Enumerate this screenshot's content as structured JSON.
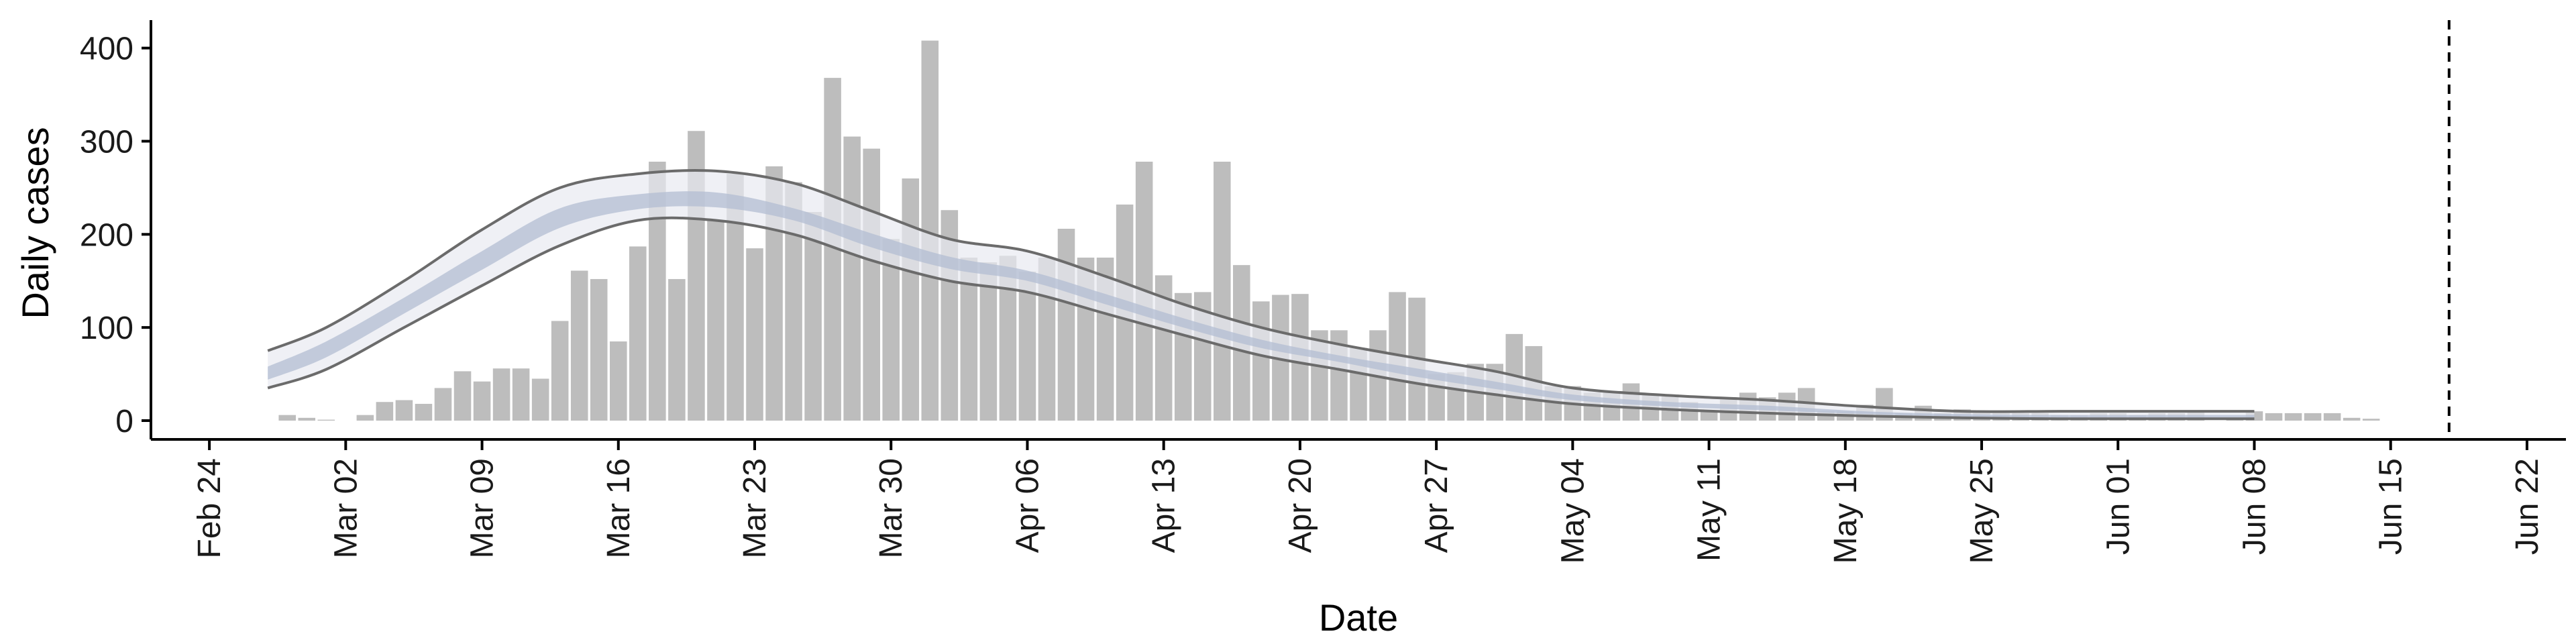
{
  "chart_data": {
    "type": "bar",
    "xlabel": "Date",
    "ylabel": "Daily cases",
    "ylim": [
      0,
      430
    ],
    "xlim": [
      "2020-02-21",
      "2020-06-24"
    ],
    "grid": false,
    "legend": "none",
    "x_ticks": [
      "Feb 24",
      "Mar 02",
      "Mar 09",
      "Mar 16",
      "Mar 23",
      "Mar 30",
      "Apr 06",
      "Apr 13",
      "Apr 20",
      "Apr 27",
      "May 04",
      "May 11",
      "May 18",
      "May 25",
      "Jun 01",
      "Jun 08",
      "Jun 15",
      "Jun 22"
    ],
    "x_tick_dates": [
      "2020-02-24",
      "2020-03-02",
      "2020-03-09",
      "2020-03-16",
      "2020-03-23",
      "2020-03-30",
      "2020-04-06",
      "2020-04-13",
      "2020-04-20",
      "2020-04-27",
      "2020-05-04",
      "2020-05-11",
      "2020-05-18",
      "2020-05-25",
      "2020-06-01",
      "2020-06-08",
      "2020-06-15",
      "2020-06-22"
    ],
    "y_ticks": [
      0,
      100,
      200,
      300,
      400
    ],
    "bars_start_date": "2020-02-28",
    "daily_cases": [
      6,
      3,
      1,
      0,
      6,
      20,
      22,
      18,
      35,
      53,
      42,
      56,
      56,
      45,
      107,
      161,
      152,
      85,
      187,
      278,
      152,
      311,
      215,
      265,
      185,
      273,
      256,
      224,
      368,
      305,
      292,
      195,
      260,
      408,
      226,
      175,
      170,
      177,
      160,
      175,
      206,
      175,
      175,
      232,
      278,
      156,
      137,
      138,
      278,
      167,
      128,
      135,
      136,
      97,
      97,
      78,
      97,
      138,
      132,
      50,
      52,
      61,
      61,
      93,
      80,
      37,
      37,
      30,
      30,
      40,
      28,
      28,
      20,
      10,
      25,
      30,
      25,
      30,
      35,
      10,
      10,
      17,
      35,
      8,
      16,
      8,
      12,
      8,
      8,
      8,
      8,
      6,
      6,
      8,
      8,
      6,
      8,
      8,
      10,
      0,
      3,
      10,
      8,
      8,
      8,
      8,
      3,
      2
    ],
    "band_dates": [
      "2020-02-27",
      "2020-03-01",
      "2020-03-05",
      "2020-03-09",
      "2020-03-13",
      "2020-03-17",
      "2020-03-21",
      "2020-03-25",
      "2020-03-29",
      "2020-04-02",
      "2020-04-06",
      "2020-04-10",
      "2020-04-14",
      "2020-04-18",
      "2020-04-22",
      "2020-04-26",
      "2020-04-30",
      "2020-05-04",
      "2020-05-09",
      "2020-05-14",
      "2020-05-19",
      "2020-05-24",
      "2020-05-29",
      "2020-06-03",
      "2020-06-08"
    ],
    "ci90_upper": [
      75,
      100,
      150,
      205,
      250,
      265,
      268,
      255,
      225,
      195,
      182,
      155,
      125,
      100,
      82,
      67,
      53,
      35,
      27,
      22,
      15,
      10,
      10,
      10,
      10
    ],
    "ci90_lower": [
      35,
      55,
      100,
      145,
      188,
      215,
      215,
      200,
      172,
      150,
      138,
      115,
      92,
      70,
      55,
      40,
      28,
      18,
      12,
      8,
      5,
      3,
      2,
      2,
      2
    ],
    "ci50_upper": [
      58,
      85,
      132,
      182,
      228,
      243,
      245,
      228,
      201,
      176,
      161,
      136,
      110,
      87,
      70,
      56,
      42,
      28,
      20,
      16,
      10,
      7,
      6,
      6,
      6
    ],
    "ci50_lower": [
      44,
      68,
      115,
      162,
      207,
      227,
      229,
      215,
      186,
      163,
      150,
      125,
      100,
      78,
      63,
      47,
      34,
      22,
      15,
      11,
      7,
      4,
      3,
      3,
      3
    ],
    "vline_date": "2020-06-18",
    "colors": {
      "bars": "#bdbdbd",
      "ci90_fill": "#e8eaf1",
      "ci50_fill": "#b3bdd2",
      "ci_line": "#6b6b6b",
      "axis": "#000000",
      "vline": "#000000"
    }
  }
}
